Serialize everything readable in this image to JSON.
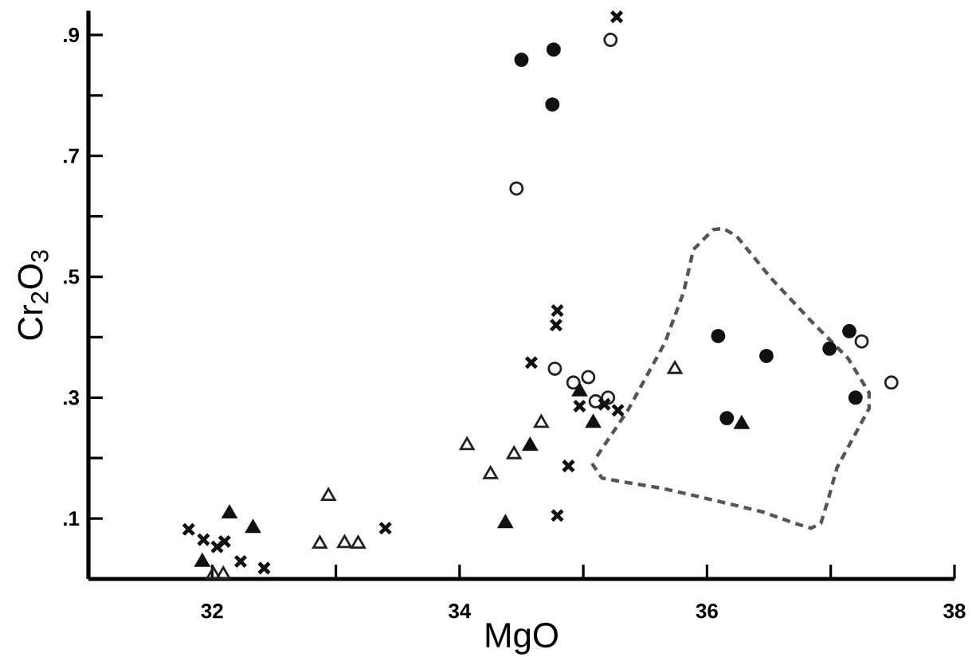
{
  "chart_data": {
    "type": "scatter",
    "xlabel": "MgO",
    "ylabel": "Cr$_{2}$O$_{3}$",
    "xlim": [
      31,
      38
    ],
    "ylim": [
      0,
      0.94
    ],
    "xticks": [
      32,
      34,
      36,
      38
    ],
    "yticks": [
      {
        "value": 0.1,
        "label": ".1"
      },
      {
        "value": 0.3,
        "label": ".3"
      },
      {
        "value": 0.5,
        "label": ".5"
      },
      {
        "value": 0.7,
        "label": ".7"
      },
      {
        "value": 0.9,
        "label": ".9"
      }
    ],
    "series": [
      {
        "color": "#111111",
        "marker": "circle",
        "x": [
          34.5,
          34.76,
          34.75,
          36.09,
          36.48,
          37.15,
          36.99,
          37.2,
          36.16
        ],
        "values": [
          0.859,
          0.876,
          0.785,
          0.402,
          0.369,
          0.41,
          0.381,
          0.3,
          0.266
        ]
      },
      {
        "color": "#222222",
        "marker": "circle-open",
        "x": [
          35.22,
          34.46,
          37.25,
          37.49,
          34.77,
          35.04,
          34.92,
          35.1,
          35.2
        ],
        "values": [
          0.892,
          0.646,
          0.393,
          0.325,
          0.348,
          0.334,
          0.325,
          0.294,
          0.3
        ]
      },
      {
        "color": "#111111",
        "marker": "cross",
        "x": [
          35.27,
          34.79,
          34.78,
          34.58,
          34.97,
          35.17,
          35.28,
          34.88,
          34.79,
          31.81,
          31.93,
          32.04,
          32.1,
          32.23,
          32.42,
          33.4
        ],
        "values": [
          0.93,
          0.444,
          0.42,
          0.358,
          0.286,
          0.289,
          0.279,
          0.187,
          0.105,
          0.082,
          0.065,
          0.053,
          0.062,
          0.029,
          0.018,
          0.084
        ]
      },
      {
        "color": "#111111",
        "marker": "triangle",
        "x": [
          32.14,
          32.33,
          31.92,
          34.97,
          35.08,
          34.57,
          34.37,
          36.28
        ],
        "values": [
          0.108,
          0.084,
          0.028,
          0.31,
          0.258,
          0.22,
          0.092,
          0.256
        ]
      },
      {
        "color": "#222222",
        "marker": "triangle-open",
        "x": [
          32.94,
          32.87,
          33.07,
          33.18,
          32.01,
          32.09,
          34.06,
          34.25,
          34.44,
          34.66,
          35.74
        ],
        "values": [
          0.137,
          0.058,
          0.059,
          0.058,
          0.007,
          0.007,
          0.221,
          0.173,
          0.206,
          0.258,
          0.347
        ]
      },
      {
        "type": "line",
        "color": "#555555",
        "marker": "none",
        "line_style": "dashed",
        "x": [
          35.07,
          35.15,
          35.31,
          35.64,
          36.02,
          36.45,
          36.71,
          36.84,
          36.92,
          36.98,
          37.05,
          37.18,
          37.31,
          37.31,
          37.14,
          36.84,
          36.52,
          36.24,
          36.13,
          36.05,
          35.89,
          35.81,
          35.66,
          35.36,
          35.1
        ],
        "values": [
          0.191,
          0.167,
          0.161,
          0.15,
          0.132,
          0.111,
          0.092,
          0.084,
          0.092,
          0.132,
          0.184,
          0.233,
          0.282,
          0.308,
          0.365,
          0.427,
          0.497,
          0.567,
          0.58,
          0.578,
          0.545,
          0.474,
          0.391,
          0.279,
          0.2
        ]
      }
    ]
  }
}
